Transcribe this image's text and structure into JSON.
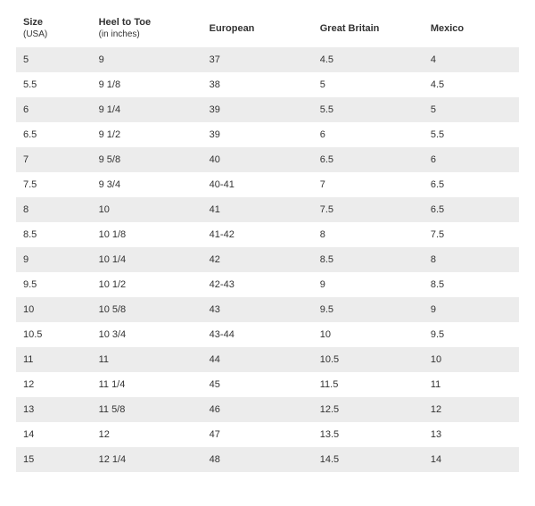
{
  "table": {
    "columns": [
      {
        "label": "Size",
        "sub": "(USA)"
      },
      {
        "label": "Heel to Toe",
        "sub": "(in inches)"
      },
      {
        "label": "European",
        "sub": ""
      },
      {
        "label": "Great Britain",
        "sub": ""
      },
      {
        "label": "Mexico",
        "sub": ""
      }
    ],
    "rows": [
      [
        "5",
        "9",
        "37",
        "4.5",
        "4"
      ],
      [
        "5.5",
        "9 1/8",
        "38",
        "5",
        "4.5"
      ],
      [
        "6",
        "9 1/4",
        "39",
        "5.5",
        "5"
      ],
      [
        "6.5",
        "9 1/2",
        "39",
        "6",
        "5.5"
      ],
      [
        "7",
        "9 5/8",
        "40",
        "6.5",
        "6"
      ],
      [
        "7.5",
        "9 3/4",
        "40-41",
        "7",
        "6.5"
      ],
      [
        "8",
        "10",
        "41",
        "7.5",
        "6.5"
      ],
      [
        "8.5",
        "10 1/8",
        "41-42",
        "8",
        "7.5"
      ],
      [
        "9",
        "10 1/4",
        "42",
        "8.5",
        "8"
      ],
      [
        "9.5",
        "10 1/2",
        "42-43",
        "9",
        "8.5"
      ],
      [
        "10",
        "10 5/8",
        "43",
        "9.5",
        "9"
      ],
      [
        "10.5",
        "10 3/4",
        "43-44",
        "10",
        "9.5"
      ],
      [
        "11",
        "11",
        "44",
        "10.5",
        "10"
      ],
      [
        "12",
        "11 1/4",
        "45",
        "11.5",
        "11"
      ],
      [
        "13",
        "11 5/8",
        "46",
        "12.5",
        "12"
      ],
      [
        "14",
        "12",
        "47",
        "13.5",
        "13"
      ],
      [
        "15",
        "12 1/4",
        "48",
        "14.5",
        "14"
      ]
    ],
    "stripe_color": "#ececec",
    "text_color": "#333333",
    "background_color": "#ffffff"
  }
}
